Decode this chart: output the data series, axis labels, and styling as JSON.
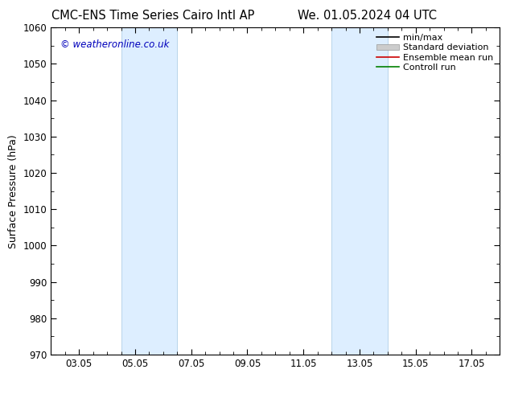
{
  "title_left": "CMC-ENS Time Series Cairo Intl AP",
  "title_right": "We. 01.05.2024 04 UTC",
  "ylabel": "Surface Pressure (hPa)",
  "watermark": "© weatheronline.co.uk",
  "watermark_color": "#0000bb",
  "ylim": [
    970,
    1060
  ],
  "yticks": [
    970,
    980,
    990,
    1000,
    1010,
    1020,
    1030,
    1040,
    1050,
    1060
  ],
  "xlim_start": 1.0,
  "xlim_end": 17.0,
  "xtick_positions": [
    2,
    4,
    6,
    8,
    10,
    12,
    14,
    16
  ],
  "xtick_labels": [
    "03.05",
    "05.05",
    "07.05",
    "09.05",
    "11.05",
    "13.05",
    "15.05",
    "17.05"
  ],
  "shade_bands": [
    {
      "x_start": 3.5,
      "x_end": 5.5
    },
    {
      "x_start": 11.0,
      "x_end": 13.0
    }
  ],
  "shade_color": "#ddeeff",
  "shade_edge_color": "#b8d4ea",
  "background_color": "#ffffff",
  "legend_items": [
    {
      "label": "min/max",
      "color": "#000000",
      "type": "line"
    },
    {
      "label": "Standard deviation",
      "color": "#cccccc",
      "type": "fill"
    },
    {
      "label": "Ensemble mean run",
      "color": "#cc0000",
      "type": "line"
    },
    {
      "label": "Controll run",
      "color": "#008000",
      "type": "line"
    }
  ],
  "title_fontsize": 10.5,
  "tick_fontsize": 8.5,
  "ylabel_fontsize": 9,
  "watermark_fontsize": 8.5,
  "legend_fontsize": 8
}
